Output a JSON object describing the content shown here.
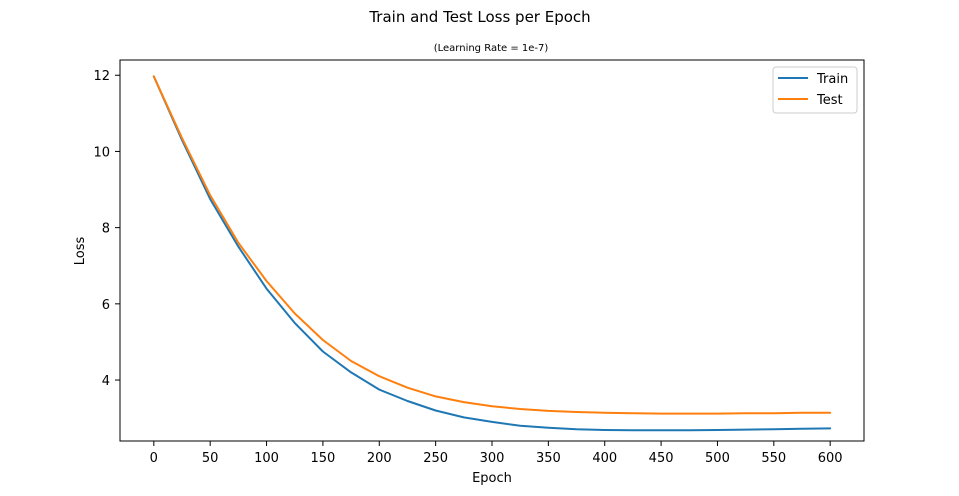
{
  "chart_data": {
    "type": "line",
    "title": "Train and Test Loss per Epoch",
    "subtitle": "(Learning Rate = 1e-7)",
    "xlabel": "Epoch",
    "ylabel": "Loss",
    "xlim": [
      -30,
      630
    ],
    "ylim": [
      2.4,
      12.4
    ],
    "x_ticks": [
      0,
      50,
      100,
      150,
      200,
      250,
      300,
      350,
      400,
      450,
      500,
      550,
      600
    ],
    "y_ticks": [
      4,
      6,
      8,
      10,
      12
    ],
    "grid": false,
    "legend_position": "top-right",
    "colors": {
      "train": "#1f77b4",
      "test": "#ff7f0e"
    },
    "series": [
      {
        "name": "Train",
        "x": [
          0,
          25,
          50,
          75,
          100,
          125,
          150,
          175,
          200,
          225,
          250,
          275,
          300,
          325,
          350,
          375,
          400,
          425,
          450,
          475,
          500,
          525,
          550,
          575,
          600
        ],
        "y": [
          11.97,
          10.3,
          8.75,
          7.5,
          6.4,
          5.5,
          4.75,
          4.2,
          3.75,
          3.45,
          3.2,
          3.02,
          2.9,
          2.8,
          2.75,
          2.71,
          2.69,
          2.68,
          2.68,
          2.68,
          2.69,
          2.7,
          2.71,
          2.72,
          2.73
        ]
      },
      {
        "name": "Test",
        "x": [
          0,
          25,
          50,
          75,
          100,
          125,
          150,
          175,
          200,
          225,
          250,
          275,
          300,
          325,
          350,
          375,
          400,
          425,
          450,
          475,
          500,
          525,
          550,
          575,
          600
        ],
        "y": [
          11.97,
          10.35,
          8.85,
          7.6,
          6.6,
          5.75,
          5.05,
          4.5,
          4.1,
          3.8,
          3.57,
          3.42,
          3.31,
          3.24,
          3.19,
          3.16,
          3.14,
          3.13,
          3.12,
          3.12,
          3.12,
          3.13,
          3.13,
          3.14,
          3.14
        ]
      }
    ]
  }
}
